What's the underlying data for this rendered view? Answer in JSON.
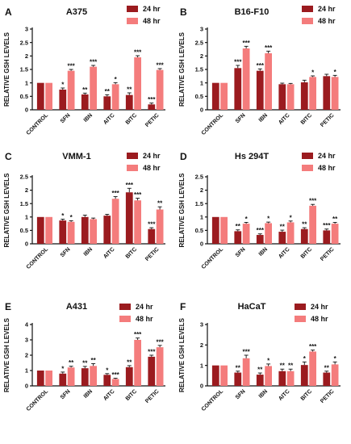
{
  "colors": {
    "hr24": "#9b1b1f",
    "hr48": "#f47c7c"
  },
  "legend": {
    "hr24": "24 hr",
    "hr48": "48 hr"
  },
  "chart_data": [
    {
      "type": "bar",
      "letter": "A",
      "title": "A375",
      "ylabel": "RELATIVE GSH LEVELS",
      "categories": [
        "CONTROL",
        "SFN",
        "IBN",
        "AITC",
        "BITC",
        "PETIC"
      ],
      "yticks": [
        0,
        0.5,
        1,
        1.5,
        2,
        2.5,
        3
      ],
      "ylim": [
        0,
        3
      ],
      "series": [
        {
          "name": "24 hr",
          "values": [
            1,
            0.75,
            0.57,
            0.5,
            0.55,
            0.2
          ],
          "errors": [
            0,
            0.06,
            0.05,
            0.06,
            0.08,
            0.05
          ],
          "stars": [
            "",
            "*",
            "**",
            "**",
            "**",
            "***"
          ]
        },
        {
          "name": "48 hr",
          "values": [
            1,
            1.45,
            1.6,
            0.95,
            1.95,
            1.48
          ],
          "errors": [
            0,
            0.05,
            0.05,
            0.06,
            0.06,
            0.05
          ],
          "stars": [
            "",
            "***",
            "***",
            "*",
            "***",
            "***"
          ]
        }
      ]
    },
    {
      "type": "bar",
      "letter": "B",
      "title": "B16-F10",
      "ylabel": "RELATIVE GSH LEVELS",
      "categories": [
        "CONTROL",
        "SFN",
        "IBN",
        "AITC",
        "BITC",
        "PETIC"
      ],
      "yticks": [
        0,
        0.5,
        1,
        1.5,
        2,
        2.5,
        3
      ],
      "ylim": [
        0,
        3
      ],
      "series": [
        {
          "name": "24 hr",
          "values": [
            1,
            1.55,
            1.45,
            0.95,
            1.02,
            1.25
          ],
          "errors": [
            0,
            0.1,
            0.07,
            0.04,
            0.08,
            0.07
          ],
          "stars": [
            "",
            "***",
            "***",
            "",
            "",
            ""
          ]
        },
        {
          "name": "48 hr",
          "values": [
            1,
            2.28,
            2.1,
            0.95,
            1.22,
            1.22
          ],
          "errors": [
            0,
            0.08,
            0.08,
            0.03,
            0.04,
            0.06
          ],
          "stars": [
            "",
            "***",
            "***",
            "",
            "*",
            "*"
          ]
        }
      ]
    },
    {
      "type": "bar",
      "letter": "C",
      "title": "VMM-1",
      "ylabel": "RELATIVE GSH LEVELS",
      "categories": [
        "CONTROL",
        "SFN",
        "IBN",
        "AITC",
        "BITC",
        "PETIC"
      ],
      "yticks": [
        0,
        0.5,
        1,
        1.5,
        2,
        2.5
      ],
      "ylim": [
        0,
        2.5
      ],
      "series": [
        {
          "name": "24 hr",
          "values": [
            1,
            0.87,
            1.0,
            1.05,
            1.92,
            0.55
          ],
          "errors": [
            0,
            0.05,
            0.07,
            0.05,
            0.15,
            0.05
          ],
          "stars": [
            "",
            "*",
            "",
            "",
            "***",
            "***"
          ]
        },
        {
          "name": "48 hr",
          "values": [
            1,
            0.82,
            0.92,
            1.68,
            1.62,
            1.28
          ],
          "errors": [
            0,
            0.04,
            0.04,
            0.08,
            0.08,
            0.1
          ],
          "stars": [
            "",
            "*",
            "",
            "***",
            "***",
            "**"
          ]
        }
      ]
    },
    {
      "type": "bar",
      "letter": "D",
      "title": "Hs 294T",
      "ylabel": "RELATIVE GSH LEVELS",
      "categories": [
        "CONTROL",
        "SFN",
        "IBN",
        "AITC",
        "BITC",
        "PETIC"
      ],
      "yticks": [
        0,
        0.5,
        1,
        1.5,
        2,
        2.5
      ],
      "ylim": [
        0,
        2.5
      ],
      "series": [
        {
          "name": "24 hr",
          "values": [
            1,
            0.47,
            0.33,
            0.45,
            0.55,
            0.5
          ],
          "errors": [
            0,
            0.05,
            0.04,
            0.06,
            0.05,
            0.05
          ],
          "stars": [
            "",
            "**",
            "***",
            "**",
            "**",
            "***"
          ]
        },
        {
          "name": "48 hr",
          "values": [
            1,
            0.75,
            0.77,
            0.8,
            1.42,
            0.75
          ],
          "errors": [
            0,
            0.05,
            0.04,
            0.05,
            0.05,
            0.05
          ],
          "stars": [
            "",
            "*",
            "*",
            "*",
            "***",
            "**"
          ]
        }
      ]
    },
    {
      "type": "bar",
      "letter": "E",
      "title": "A431",
      "ylabel": "RELATIVE GSH LEVELS",
      "categories": [
        "CONTROL",
        "SFN",
        "IBN",
        "AITC",
        "BITC",
        "PETIC"
      ],
      "yticks": [
        0,
        1,
        2,
        3,
        4
      ],
      "ylim": [
        0,
        4
      ],
      "series": [
        {
          "name": "24 hr",
          "values": [
            1,
            0.8,
            1.15,
            0.72,
            1.22,
            1.9
          ],
          "errors": [
            0,
            0.1,
            0.12,
            0.08,
            0.1,
            0.1
          ],
          "stars": [
            "",
            "*",
            "**",
            "*",
            "**",
            "***"
          ]
        },
        {
          "name": "48 hr",
          "values": [
            1,
            1.2,
            1.3,
            0.45,
            3.0,
            2.52
          ],
          "errors": [
            0,
            0.08,
            0.15,
            0.05,
            0.12,
            0.12
          ],
          "stars": [
            "",
            "**",
            "**",
            "***",
            "***",
            "***"
          ]
        }
      ]
    },
    {
      "type": "bar",
      "letter": "F",
      "title": "HaCaT",
      "ylabel": "RELATIVE GSH LEVELS",
      "categories": [
        "CONTROL",
        "SFN",
        "IBN",
        "AITC",
        "BITC",
        "PETIC"
      ],
      "yticks": [
        0,
        1,
        2,
        3
      ],
      "ylim": [
        0,
        3
      ],
      "series": [
        {
          "name": "24 hr",
          "values": [
            1,
            0.65,
            0.55,
            0.72,
            1.02,
            0.65
          ],
          "errors": [
            0,
            0.07,
            0.08,
            0.1,
            0.15,
            0.07
          ],
          "stars": [
            "",
            "**",
            "**",
            "**",
            "*",
            "**"
          ]
        },
        {
          "name": "48 hr",
          "values": [
            1,
            1.35,
            0.97,
            0.72,
            1.68,
            1.05
          ],
          "errors": [
            0,
            0.15,
            0.1,
            0.1,
            0.07,
            0.12
          ],
          "stars": [
            "",
            "***",
            "*",
            "**",
            "***",
            "*"
          ]
        }
      ]
    }
  ]
}
